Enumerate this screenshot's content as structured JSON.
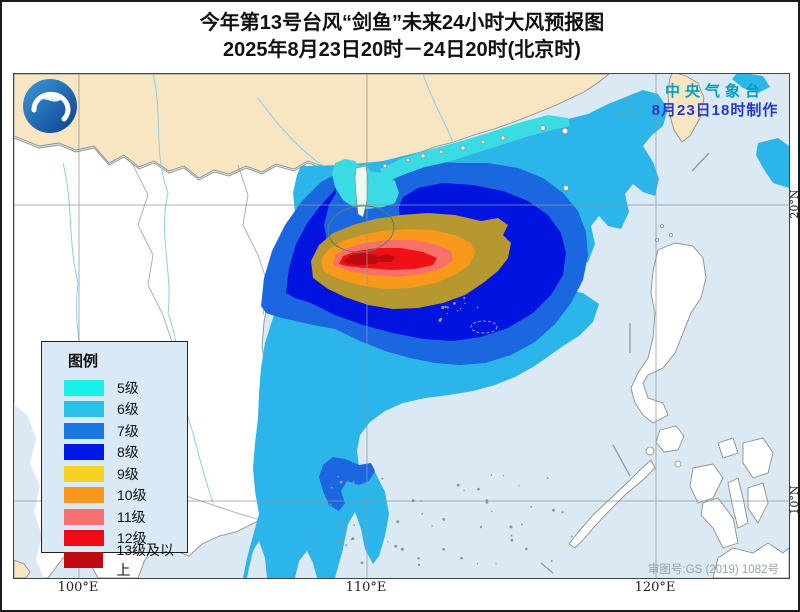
{
  "title": {
    "line1": "今年第13号台风“剑鱼”未来24小时大风预报图",
    "line2": "2025年8月23日20时－24日20时(北京时)"
  },
  "annotation": {
    "agency": "中央气象台",
    "made": "8月23日18时制作",
    "agency_color": "#00A0C0",
    "made_color": "#2638CC"
  },
  "approval": "审图号:GS (2019) 1082号",
  "approval_color": "#97A0AB",
  "axes": {
    "lon": [
      "100°E",
      "110°E",
      "120°E"
    ],
    "lat": [
      "20°N",
      "10°N"
    ]
  },
  "legend": {
    "title": "图例",
    "items": [
      {
        "label": "5级",
        "color": "#19F0EA"
      },
      {
        "label": "6级",
        "color": "#2BC0E8"
      },
      {
        "label": "7级",
        "color": "#1878E0"
      },
      {
        "label": "8级",
        "color": "#0018E8"
      },
      {
        "label": "9级",
        "color": "#F8D022"
      },
      {
        "label": "10级",
        "color": "#F8981A"
      },
      {
        "label": "11级",
        "color": "#F87070"
      },
      {
        "label": "12级",
        "color": "#F00A12"
      },
      {
        "label": "13级及以上",
        "color": "#C00A12"
      }
    ]
  },
  "colors": {
    "sea": "#DAE9F4",
    "land_cn": "#F8E6C3",
    "land_other": "#FFFFFF",
    "grid": "#8A98A8",
    "wind5": "#3ADBE3",
    "wind6": "#2BB5E8",
    "wind7": "#1A67DF",
    "wind8": "#0114DF",
    "wind9_map": "#B5982F",
    "wind10": "#F8991B",
    "wind11": "#F87168",
    "wind12": "#EF1115",
    "wind13": "#BC0A10",
    "logo_main": "#2F86CC",
    "logo_deep": "#0B3E8F"
  }
}
